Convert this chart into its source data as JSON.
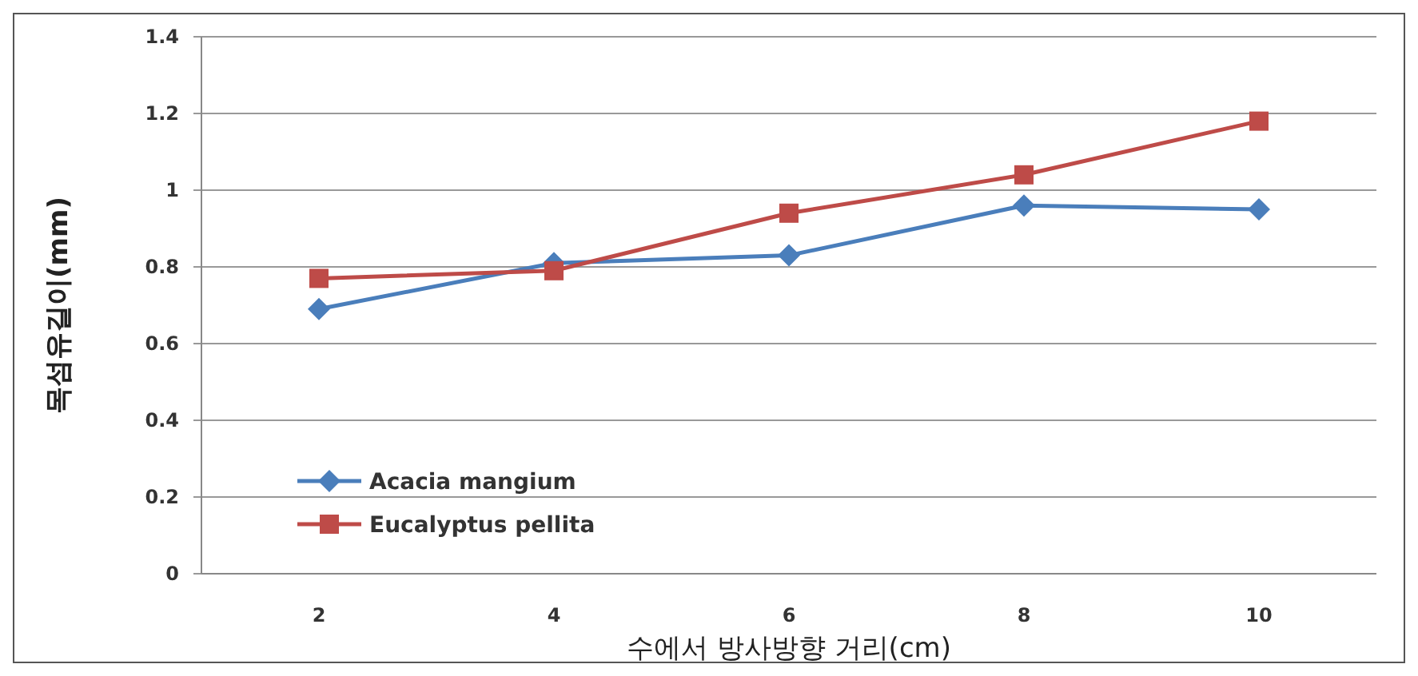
{
  "chart_data": {
    "type": "line",
    "xlabel": "수에서 방사방향 거리(cm)",
    "ylabel": "목섬유길이(mm)",
    "categories": [
      "2",
      "4",
      "6",
      "8",
      "10"
    ],
    "series": [
      {
        "name": "Acacia mangium",
        "color": "#4a7ebb",
        "marker": "diamond",
        "values": [
          0.69,
          0.81,
          0.83,
          0.96,
          0.95
        ]
      },
      {
        "name": "Eucalyptus pellita",
        "color": "#be4b48",
        "marker": "square",
        "values": [
          0.77,
          0.79,
          0.94,
          1.04,
          1.18
        ]
      }
    ],
    "ylim": [
      0,
      1.4
    ],
    "yticks": [
      0,
      0.2,
      0.4,
      0.6,
      0.8,
      1,
      1.2,
      1.4
    ],
    "grid": "y",
    "legend": "bottom left",
    "line_style": "solid"
  }
}
